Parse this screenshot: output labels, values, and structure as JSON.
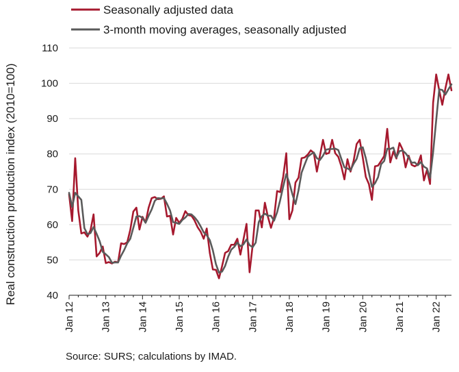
{
  "chart_data": {
    "type": "line",
    "title": "",
    "ylabel": "Real construction production index (2010=100)",
    "xlabel": "",
    "ylim": [
      40,
      110
    ],
    "yticks": [
      40,
      50,
      60,
      70,
      80,
      90,
      100,
      110
    ],
    "xticks": [
      "Jan 12",
      "Jan 13",
      "Jan 14",
      "Jan 15",
      "Jan 16",
      "Jan 17",
      "Jan 18",
      "Jan 19",
      "Jan 20",
      "Jan 21",
      "Jan 22"
    ],
    "x_start": "2012-01",
    "x_end": "2022-06",
    "legend_position": "top-left",
    "grid": true,
    "series": [
      {
        "name": "Seasonally adjusted data",
        "color": "#a6192e",
        "values": [
          68.6,
          61.0,
          78.8,
          64.0,
          57.5,
          57.8,
          56.6,
          58.4,
          62.9,
          51.0,
          52.0,
          53.8,
          49.1,
          49.4,
          49.0,
          49.5,
          49.3,
          54.7,
          54.5,
          55.0,
          58.5,
          63.7,
          64.8,
          58.6,
          62.2,
          60.6,
          64.8,
          67.5,
          67.8,
          67.2,
          67.3,
          68.0,
          62.3,
          62.5,
          57.2,
          61.9,
          60.5,
          61.6,
          63.8,
          62.7,
          62.5,
          61.2,
          59.3,
          58.0,
          56.0,
          58.9,
          52.0,
          47.3,
          47.2,
          44.8,
          48.2,
          52.0,
          52.5,
          54.3,
          54.3,
          56.0,
          51.5,
          55.8,
          60.2,
          46.5,
          54.1,
          64.0,
          64.0,
          59.2,
          66.2,
          62.2,
          59.1,
          62.0,
          69.5,
          69.2,
          73.6,
          80.2,
          61.5,
          64.0,
          71.9,
          73.3,
          78.8,
          79.0,
          79.8,
          81.0,
          80.3,
          75.0,
          79.5,
          84.0,
          80.0,
          80.3,
          84.0,
          80.2,
          79.2,
          76.5,
          72.8,
          78.5,
          75.0,
          78.0,
          82.8,
          84.0,
          79.0,
          73.5,
          71.5,
          67.0,
          76.5,
          76.7,
          78.0,
          79.4,
          87.1,
          77.6,
          80.7,
          78.7,
          83.1,
          81.3,
          76.2,
          79.5,
          76.9,
          76.5,
          77.0,
          79.6,
          72.5,
          75.5,
          71.5,
          94.5,
          102.5,
          98.0,
          93.9,
          98.5,
          102.5,
          98.0
        ]
      },
      {
        "name": "3-month moving averages, seasonally adjusted",
        "color": "#5a5a5a",
        "values": [
          69.0,
          65.0,
          69.0,
          68.0,
          67.0,
          59.0,
          57.3,
          57.6,
          59.3,
          57.4,
          55.3,
          52.3,
          51.6,
          50.8,
          49.2,
          49.3,
          49.3,
          51.2,
          52.8,
          54.7,
          56.0,
          59.1,
          62.3,
          62.4,
          61.9,
          60.5,
          62.5,
          64.3,
          66.7,
          67.5,
          67.4,
          67.5,
          65.9,
          64.0,
          60.7,
          60.5,
          60.2,
          61.3,
          62.0,
          63.0,
          62.9,
          62.1,
          61.0,
          59.5,
          57.8,
          57.0,
          55.6,
          52.7,
          48.8,
          46.4,
          46.7,
          48.3,
          50.9,
          52.9,
          53.7,
          54.9,
          53.9,
          54.4,
          55.8,
          54.2,
          53.6,
          54.9,
          60.7,
          62.4,
          63.1,
          62.5,
          62.5,
          61.1,
          63.5,
          66.9,
          70.8,
          74.3,
          71.8,
          68.6,
          65.8,
          69.7,
          74.7,
          77.0,
          79.2,
          79.9,
          80.4,
          78.8,
          78.3,
          79.5,
          81.2,
          81.4,
          81.4,
          81.5,
          81.1,
          78.6,
          76.2,
          75.9,
          75.4,
          77.2,
          78.6,
          81.6,
          81.9,
          78.8,
          74.7,
          70.7,
          71.7,
          73.4,
          77.1,
          78.0,
          81.5,
          81.4,
          81.8,
          79.0,
          80.8,
          81.0,
          80.2,
          79.0,
          77.5,
          77.6,
          76.8,
          77.7,
          76.4,
          75.9,
          73.2,
          80.5,
          89.5,
          98.3,
          98.1,
          96.8,
          98.3,
          99.7
        ]
      }
    ]
  },
  "legend": {
    "items": [
      {
        "label": "Seasonally adjusted data",
        "color": "#a6192e"
      },
      {
        "label": "3-month moving averages, seasonally adjusted",
        "color": "#5a5a5a"
      }
    ]
  },
  "source_text": "Source: SURS; calculations by IMAD."
}
